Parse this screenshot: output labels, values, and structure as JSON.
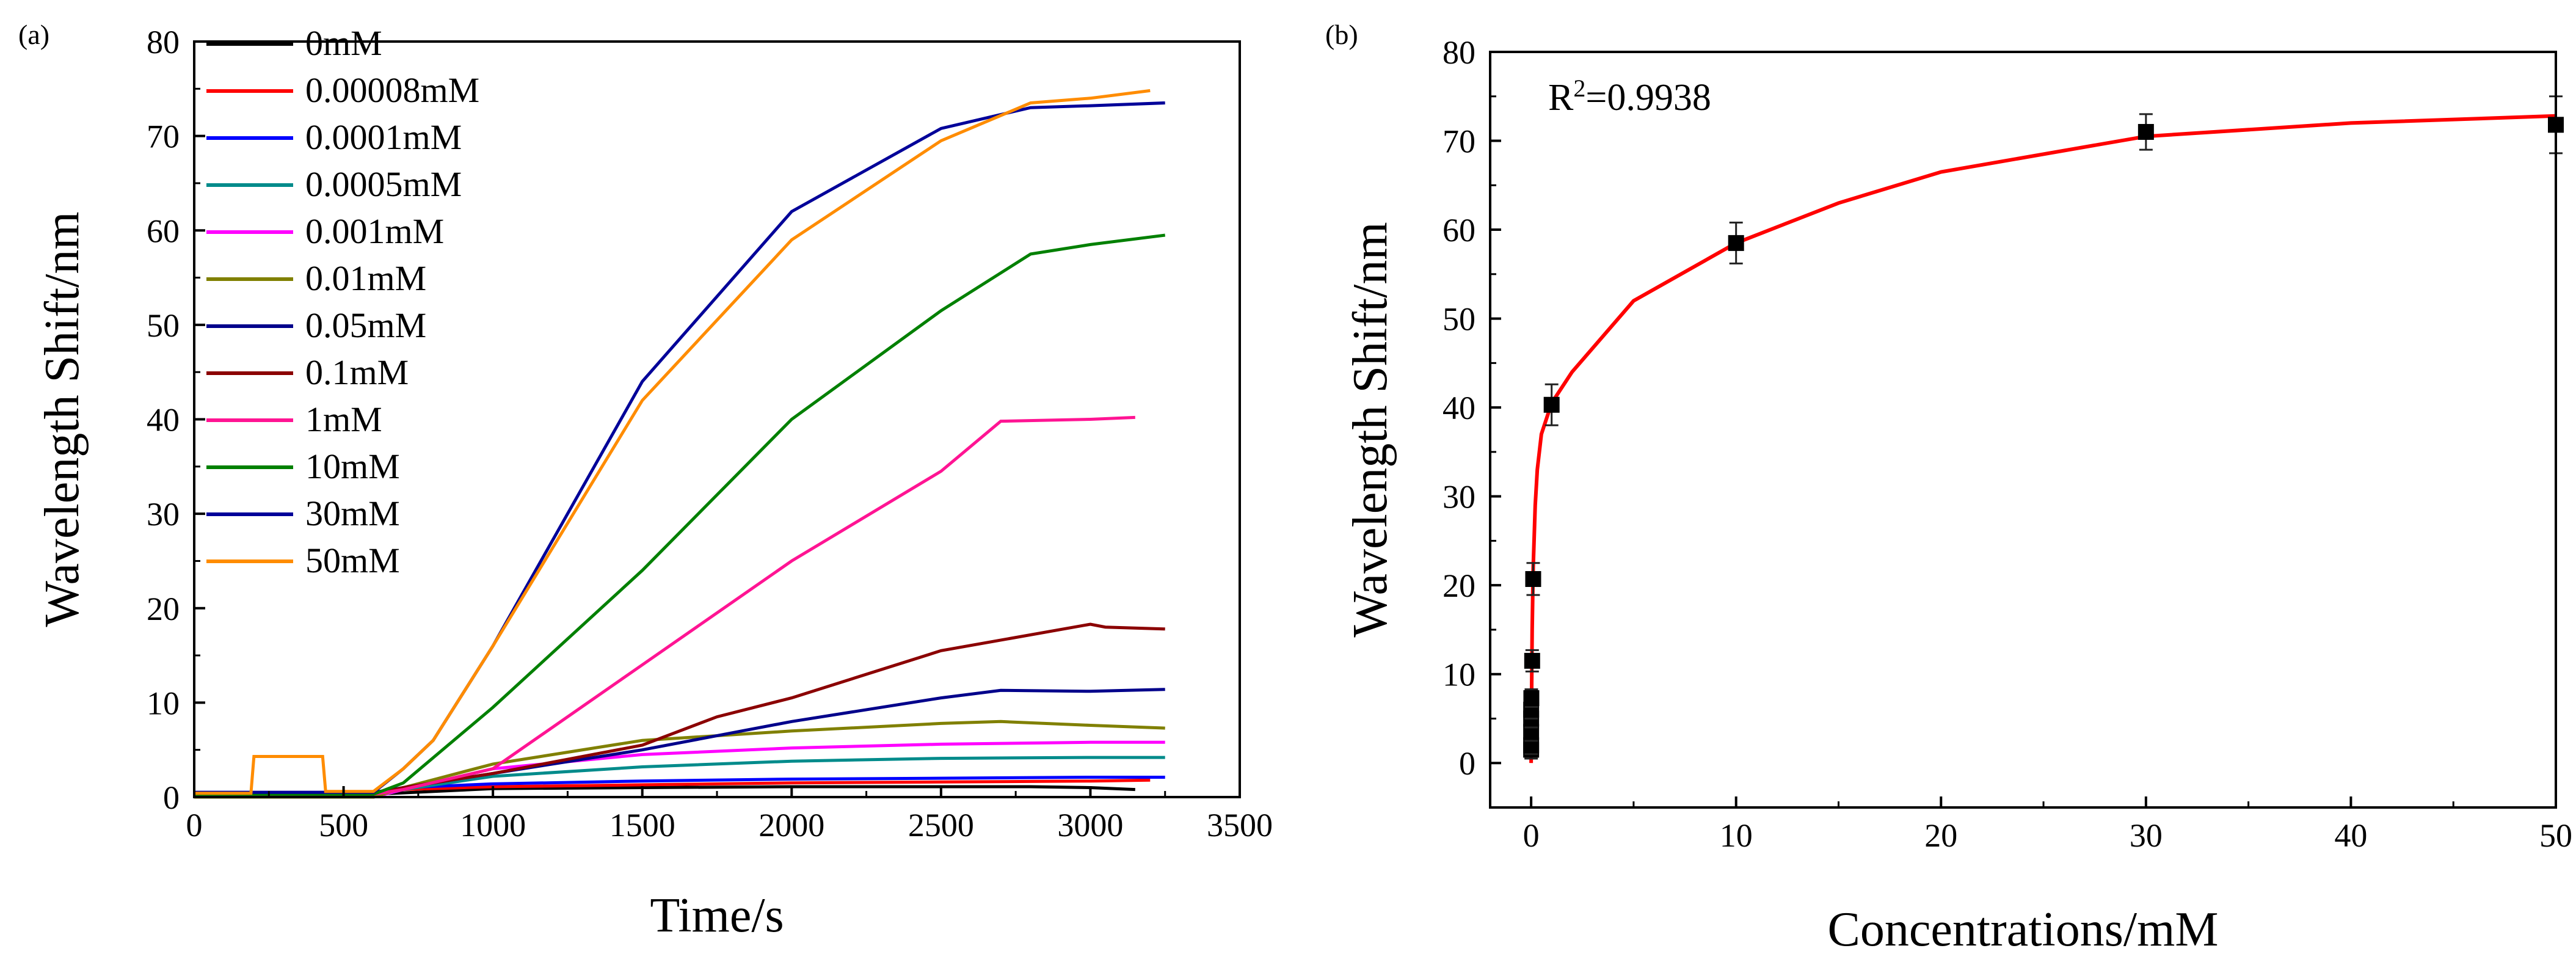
{
  "chart_data": [
    {
      "panel_label": "(a)",
      "type": "line",
      "xlabel": "Time/s",
      "ylabel": "Wavelength Shift/nm",
      "xlim": [
        0,
        3500
      ],
      "ylim": [
        0,
        80
      ],
      "xticks": [
        0,
        500,
        1000,
        1500,
        2000,
        2500,
        3000,
        3500
      ],
      "yticks": [
        0,
        10,
        20,
        30,
        40,
        50,
        60,
        70,
        80
      ],
      "legend_position": "top-left",
      "grid": false,
      "series": [
        {
          "name": "0mM",
          "color": "#000000",
          "x": [
            0,
            200,
            450,
            600,
            1000,
            1500,
            2000,
            2500,
            2800,
            3000,
            3150
          ],
          "y": [
            0.3,
            0.3,
            0.3,
            0.3,
            0.9,
            1.0,
            1.1,
            1.1,
            1.1,
            1.0,
            0.8
          ]
        },
        {
          "name": "0.00008mM",
          "color": "#ff0000",
          "x": [
            0,
            200,
            450,
            600,
            700,
            1000,
            1500,
            2000,
            2500,
            3000,
            3200
          ],
          "y": [
            0,
            0,
            0,
            0,
            0.8,
            1.1,
            1.3,
            1.5,
            1.6,
            1.7,
            1.8
          ]
        },
        {
          "name": "0.0001mM",
          "color": "#0000ff",
          "x": [
            0,
            200,
            450,
            600,
            700,
            1000,
            1500,
            2000,
            2500,
            3000,
            3250
          ],
          "y": [
            0,
            0,
            0,
            0,
            1.0,
            1.4,
            1.7,
            1.9,
            2.0,
            2.1,
            2.1
          ]
        },
        {
          "name": "0.0005mM",
          "color": "#008b8b",
          "x": [
            0,
            200,
            450,
            600,
            700,
            1000,
            1500,
            2000,
            2500,
            3000,
            3250
          ],
          "y": [
            0,
            0,
            0,
            0,
            0.8,
            2.2,
            3.2,
            3.8,
            4.1,
            4.2,
            4.2
          ]
        },
        {
          "name": "0.001mM",
          "color": "#ff00ff",
          "x": [
            0,
            200,
            450,
            600,
            700,
            1000,
            1500,
            2000,
            2500,
            3000,
            3250
          ],
          "y": [
            0,
            0,
            0,
            0,
            0.8,
            3.0,
            4.5,
            5.2,
            5.6,
            5.8,
            5.8
          ]
        },
        {
          "name": "0.01mM",
          "color": "#808000",
          "x": [
            0,
            200,
            450,
            600,
            700,
            1000,
            1500,
            2000,
            2500,
            2700,
            3000,
            3250
          ],
          "y": [
            0,
            0,
            0,
            0,
            1.0,
            3.5,
            6.0,
            7.0,
            7.8,
            8.0,
            7.6,
            7.3
          ]
        },
        {
          "name": "0.05mM",
          "color": "#00008b",
          "x": [
            0,
            200,
            450,
            600,
            700,
            1000,
            1500,
            2000,
            2500,
            2700,
            3000,
            3250
          ],
          "y": [
            0.5,
            0.5,
            0.5,
            0.5,
            1.0,
            2.5,
            5.0,
            8.0,
            10.5,
            11.3,
            11.2,
            11.4
          ]
        },
        {
          "name": "0.1mM",
          "color": "#8b0000",
          "x": [
            0,
            200,
            450,
            600,
            700,
            1000,
            1500,
            1750,
            2000,
            2500,
            3000,
            3050,
            3250
          ],
          "y": [
            0.3,
            0.3,
            0.3,
            0.3,
            1.0,
            2.5,
            5.5,
            8.5,
            10.5,
            15.5,
            18.3,
            18.0,
            17.8
          ]
        },
        {
          "name": "1mM",
          "color": "#ff1493",
          "x": [
            0,
            200,
            450,
            600,
            700,
            1000,
            1500,
            2000,
            2500,
            2700,
            3000,
            3150
          ],
          "y": [
            0.3,
            0.3,
            0.3,
            0.3,
            0.8,
            3.0,
            14.0,
            25.0,
            34.5,
            39.8,
            40.0,
            40.2
          ]
        },
        {
          "name": "10mM",
          "color": "#008000",
          "x": [
            0,
            200,
            450,
            600,
            700,
            1000,
            1500,
            2000,
            2500,
            2800,
            3000,
            3250
          ],
          "y": [
            0.3,
            0.3,
            0.3,
            0.3,
            1.5,
            9.5,
            24.0,
            40.0,
            51.5,
            57.5,
            58.5,
            59.5
          ]
        },
        {
          "name": "30mM",
          "color": "#000099",
          "x": [
            0,
            200,
            450,
            600,
            700,
            800,
            1000,
            1500,
            2000,
            2500,
            2800,
            3000,
            3250
          ],
          "y": [
            0.5,
            0.5,
            0.5,
            0.5,
            3.0,
            6.0,
            16.0,
            44.0,
            62.0,
            70.8,
            73.0,
            73.2,
            73.5
          ]
        },
        {
          "name": "50mM",
          "color": "#ff8c00",
          "x": [
            0,
            190,
            200,
            430,
            440,
            600,
            700,
            800,
            1000,
            1500,
            2000,
            2500,
            2800,
            3000,
            3200
          ],
          "y": [
            0.4,
            0.4,
            4.3,
            4.3,
            0.6,
            0.6,
            3.0,
            6.0,
            16.0,
            42.0,
            59.0,
            69.5,
            73.5,
            74.0,
            74.8
          ]
        }
      ]
    },
    {
      "panel_label": "(b)",
      "type": "scatter",
      "xlabel": "Concentrations/mM",
      "ylabel": "Wavelength Shift/nm",
      "xlim": [
        -2,
        50
      ],
      "ylim": [
        -5,
        80
      ],
      "xticks": [
        0,
        10,
        20,
        30,
        40,
        50
      ],
      "yticks": [
        0,
        10,
        20,
        30,
        40,
        50,
        60,
        70,
        80
      ],
      "annotation": {
        "r2_prefix": "R",
        "r2_exp": "2",
        "r2_value": "=0.9938"
      },
      "grid": false,
      "points": {
        "x": [
          0,
          8e-05,
          0.0001,
          0.0005,
          0.001,
          0.01,
          0.05,
          0.1,
          1,
          10,
          30,
          50
        ],
        "y": [
          1.5,
          2.0,
          3.5,
          5.0,
          6.0,
          7.3,
          11.5,
          20.7,
          40.3,
          58.5,
          71.0,
          71.8
        ],
        "err": [
          1.0,
          1.0,
          1.0,
          1.0,
          1.0,
          1.0,
          1.2,
          1.8,
          2.3,
          2.3,
          2.0,
          3.2
        ]
      },
      "fit": {
        "color": "#ff0000",
        "x": [
          0,
          0.02,
          0.05,
          0.1,
          0.2,
          0.3,
          0.5,
          1,
          2,
          5,
          10,
          15,
          20,
          30,
          40,
          50
        ],
        "y": [
          0,
          7,
          15,
          22,
          29,
          33,
          37,
          40.5,
          44,
          52,
          58.5,
          63,
          66.5,
          70.5,
          72,
          72.8
        ]
      }
    }
  ]
}
